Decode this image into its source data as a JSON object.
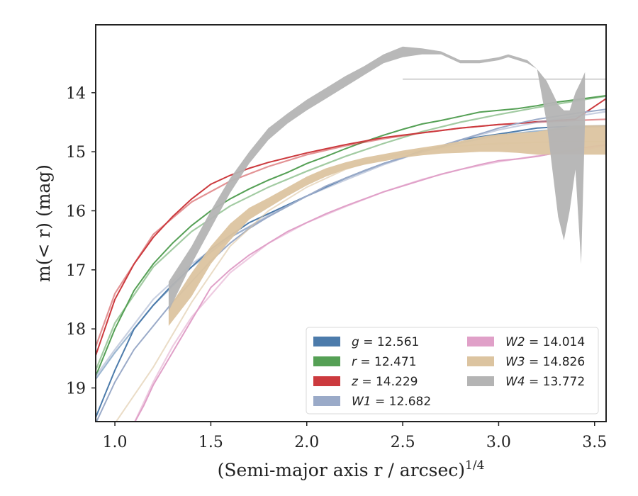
{
  "chart_data": {
    "type": "line",
    "title": "",
    "xlabel": "(Semi-major axis r / arcsec)",
    "xlabel_sup": "1/4",
    "ylabel": "m(< r) (mag)",
    "xlim": [
      0.9,
      3.56
    ],
    "ylim": [
      19.57,
      12.85
    ],
    "y_inverted": true,
    "xticks": [
      "1.0",
      "1.5",
      "2.0",
      "2.5",
      "3.0",
      "3.5"
    ],
    "yticks": [
      "14",
      "15",
      "16",
      "17",
      "18",
      "19"
    ],
    "grid": false,
    "legend_placement": "lower-right",
    "series": [
      {
        "name": "g = 12.561",
        "label_var": "g",
        "label_val": "12.561",
        "color": "#4c7bab",
        "kind": "line",
        "x": [
          0.9,
          0.95,
          1.0,
          1.1,
          1.2,
          1.3,
          1.4,
          1.5,
          1.6,
          1.7,
          1.8,
          1.9,
          2.0,
          2.1,
          2.2,
          2.3,
          2.4,
          2.5,
          2.6,
          2.7,
          2.8,
          2.9,
          3.0,
          3.1,
          3.2,
          3.3,
          3.4,
          3.56
        ],
        "y": [
          19.5,
          19.1,
          18.7,
          18.0,
          17.6,
          17.25,
          16.95,
          16.65,
          16.42,
          16.2,
          16.05,
          15.9,
          15.75,
          15.6,
          15.45,
          15.32,
          15.2,
          15.1,
          14.98,
          14.92,
          14.8,
          14.75,
          14.7,
          14.65,
          14.6,
          14.58,
          14.57,
          14.56
        ],
        "x_model": [
          0.9,
          1.0,
          1.2,
          1.4,
          1.6,
          1.8,
          2.0,
          2.2,
          2.4,
          2.6,
          2.8,
          3.0,
          3.2,
          3.4,
          3.56
        ],
        "y_model": [
          18.85,
          18.4,
          17.6,
          16.95,
          16.45,
          16.1,
          15.75,
          15.45,
          15.2,
          15.0,
          14.85,
          14.72,
          14.65,
          14.6,
          14.57
        ]
      },
      {
        "name": "r = 12.471",
        "label_var": "r",
        "label_val": "12.471",
        "color": "#55a055",
        "kind": "line",
        "x": [
          0.9,
          1.0,
          1.1,
          1.2,
          1.3,
          1.4,
          1.5,
          1.6,
          1.7,
          1.8,
          1.9,
          2.0,
          2.1,
          2.2,
          2.3,
          2.4,
          2.5,
          2.6,
          2.7,
          2.8,
          2.9,
          3.0,
          3.1,
          3.2,
          3.3,
          3.4,
          3.56
        ],
        "y": [
          18.8,
          18.0,
          17.35,
          16.9,
          16.55,
          16.25,
          16.0,
          15.8,
          15.63,
          15.48,
          15.35,
          15.2,
          15.08,
          14.95,
          14.83,
          14.72,
          14.62,
          14.53,
          14.47,
          14.4,
          14.33,
          14.3,
          14.27,
          14.22,
          14.16,
          14.12,
          14.05
        ],
        "x_model": [
          0.9,
          1.0,
          1.2,
          1.4,
          1.6,
          1.8,
          2.0,
          2.2,
          2.4,
          2.6,
          2.8,
          3.0,
          3.2,
          3.4,
          3.56
        ],
        "y_model": [
          18.7,
          17.9,
          16.95,
          16.35,
          15.92,
          15.6,
          15.33,
          15.08,
          14.86,
          14.66,
          14.5,
          14.37,
          14.25,
          14.14,
          14.06
        ]
      },
      {
        "name": "z = 14.229",
        "label_var": "z",
        "label_val": "14.229",
        "color": "#cc3a3e",
        "kind": "line",
        "x": [
          0.9,
          1.0,
          1.1,
          1.2,
          1.3,
          1.4,
          1.5,
          1.6,
          1.7,
          1.8,
          1.9,
          2.0,
          2.1,
          2.2,
          2.3,
          2.4,
          2.5,
          2.6,
          2.7,
          2.8,
          2.9,
          3.0,
          3.1,
          3.2,
          3.3,
          3.4,
          3.56
        ],
        "y": [
          18.45,
          17.5,
          16.9,
          16.45,
          16.1,
          15.8,
          15.55,
          15.4,
          15.28,
          15.18,
          15.1,
          15.02,
          14.95,
          14.88,
          14.82,
          14.76,
          14.72,
          14.68,
          14.64,
          14.6,
          14.57,
          14.54,
          14.52,
          14.49,
          14.47,
          14.45,
          14.1
        ],
        "x_model": [
          0.9,
          1.0,
          1.2,
          1.4,
          1.6,
          1.8,
          2.0,
          2.2,
          2.4,
          2.6,
          2.8,
          3.0,
          3.2,
          3.4,
          3.56
        ],
        "y_model": [
          18.3,
          17.4,
          16.4,
          15.85,
          15.5,
          15.25,
          15.05,
          14.9,
          14.78,
          14.68,
          14.6,
          14.54,
          14.5,
          14.47,
          14.45
        ]
      },
      {
        "name": "W1 = 12.682",
        "label_var": "W1",
        "label_val": "12.682",
        "color": "#9aaac8",
        "kind": "line",
        "x": [
          0.9,
          1.0,
          1.1,
          1.2,
          1.3,
          1.4,
          1.5,
          1.6,
          1.7,
          1.8,
          1.9,
          2.0,
          2.1,
          2.2,
          2.3,
          2.4,
          2.5,
          2.6,
          2.7,
          2.8,
          2.9,
          3.0,
          3.1,
          3.2,
          3.3,
          3.4,
          3.56
        ],
        "y": [
          19.6,
          18.9,
          18.35,
          17.95,
          17.55,
          17.2,
          16.85,
          16.55,
          16.3,
          16.1,
          15.92,
          15.75,
          15.58,
          15.45,
          15.32,
          15.2,
          15.1,
          15.0,
          14.9,
          14.8,
          14.7,
          14.6,
          14.52,
          14.45,
          14.4,
          14.35,
          14.28
        ],
        "x_model": [
          0.9,
          1.0,
          1.2,
          1.4,
          1.6,
          1.8,
          2.0,
          2.2,
          2.4,
          2.6,
          2.8,
          3.0,
          3.2,
          3.4,
          3.56
        ],
        "y_model": [
          18.8,
          18.35,
          17.5,
          16.9,
          16.45,
          16.08,
          15.75,
          15.48,
          15.22,
          15.0,
          14.8,
          14.63,
          14.5,
          14.4,
          14.32
        ]
      },
      {
        "name": "W2 = 14.014",
        "label_var": "W2",
        "label_val": "14.014",
        "color": "#e0a0c8",
        "kind": "line",
        "x": [
          1.1,
          1.15,
          1.2,
          1.3,
          1.4,
          1.5,
          1.6,
          1.7,
          1.8,
          1.9,
          2.0,
          2.1,
          2.2,
          2.3,
          2.4,
          2.5,
          2.6,
          2.7,
          2.8,
          2.9,
          3.0,
          3.1,
          3.2,
          3.3,
          3.4,
          3.56
        ],
        "y": [
          19.6,
          19.3,
          18.95,
          18.4,
          17.85,
          17.3,
          17.0,
          16.75,
          16.55,
          16.35,
          16.2,
          16.05,
          15.92,
          15.8,
          15.68,
          15.58,
          15.48,
          15.38,
          15.3,
          15.22,
          15.15,
          15.12,
          15.08,
          15.02,
          14.95,
          14.88
        ],
        "x_model": [
          1.1,
          1.2,
          1.3,
          1.4,
          1.6,
          1.8,
          2.0,
          2.2,
          2.4,
          2.6,
          2.8,
          3.0,
          3.2,
          3.4,
          3.56
        ],
        "y_model": [
          19.6,
          18.9,
          18.3,
          17.8,
          17.05,
          16.55,
          16.2,
          15.93,
          15.68,
          15.47,
          15.3,
          15.17,
          15.07,
          14.98,
          14.9
        ]
      },
      {
        "name": "W3 = 14.826",
        "label_var": "W3",
        "label_val": "14.826",
        "color": "#dcc4a0",
        "kind": "band",
        "x": [
          1.28,
          1.4,
          1.5,
          1.6,
          1.7,
          1.8,
          1.9,
          2.0,
          2.1,
          2.2,
          2.3,
          2.4,
          2.5,
          2.6,
          2.7,
          2.8,
          2.9,
          3.0,
          3.1,
          3.2,
          3.3,
          3.4,
          3.56
        ],
        "y_low": [
          17.65,
          17.05,
          16.6,
          16.22,
          15.95,
          15.78,
          15.6,
          15.42,
          15.28,
          15.18,
          15.1,
          15.04,
          14.98,
          14.93,
          14.88,
          14.82,
          14.75,
          14.7,
          14.68,
          14.66,
          14.6,
          14.55,
          14.55
        ],
        "y_high": [
          17.95,
          17.45,
          16.9,
          16.5,
          16.15,
          15.95,
          15.75,
          15.57,
          15.42,
          15.3,
          15.22,
          15.16,
          15.1,
          15.06,
          15.03,
          15.02,
          15.0,
          15.0,
          15.02,
          15.05,
          15.05,
          15.05,
          15.05
        ],
        "x_model": [
          1.0,
          1.2,
          1.4,
          1.6,
          1.8,
          2.0,
          2.2,
          2.4,
          2.6,
          2.8,
          3.0,
          3.2,
          3.4,
          3.56
        ],
        "y_model": [
          19.6,
          18.65,
          17.55,
          16.6,
          16.0,
          15.6,
          15.3,
          15.1,
          14.97,
          14.9,
          14.86,
          14.84,
          14.83,
          14.83
        ]
      },
      {
        "name": "W4 = 13.772",
        "label_var": "W4",
        "label_val": "13.772",
        "color": "#b4b4b4",
        "kind": "band",
        "x": [
          1.28,
          1.4,
          1.5,
          1.6,
          1.7,
          1.8,
          1.9,
          2.0,
          2.1,
          2.2,
          2.3,
          2.4,
          2.5,
          2.6,
          2.7,
          2.8,
          2.9,
          3.0,
          3.05,
          3.1,
          3.15,
          3.2,
          3.25,
          3.28,
          3.31,
          3.34,
          3.37,
          3.4,
          3.43,
          3.45
        ],
        "y_low": [
          17.7,
          16.9,
          16.3,
          15.7,
          15.2,
          14.8,
          14.52,
          14.3,
          14.1,
          13.9,
          13.7,
          13.5,
          13.4,
          13.35,
          13.35,
          13.5,
          13.5,
          13.45,
          13.4,
          13.45,
          13.5,
          13.6,
          13.8,
          14.0,
          14.2,
          14.3,
          14.3,
          14.0,
          13.8,
          13.65
        ],
        "y_high": [
          17.2,
          16.6,
          16.0,
          15.45,
          15.0,
          14.6,
          14.35,
          14.12,
          13.92,
          13.72,
          13.55,
          13.35,
          13.22,
          13.25,
          13.3,
          13.45,
          13.45,
          13.4,
          13.35,
          13.4,
          13.45,
          13.6,
          14.5,
          15.3,
          16.1,
          16.5,
          16.0,
          15.3,
          16.9,
          14.5
        ],
        "x_model": [
          2.5,
          3.0,
          3.56
        ],
        "y_model": [
          13.77,
          13.77,
          13.77
        ]
      }
    ]
  }
}
